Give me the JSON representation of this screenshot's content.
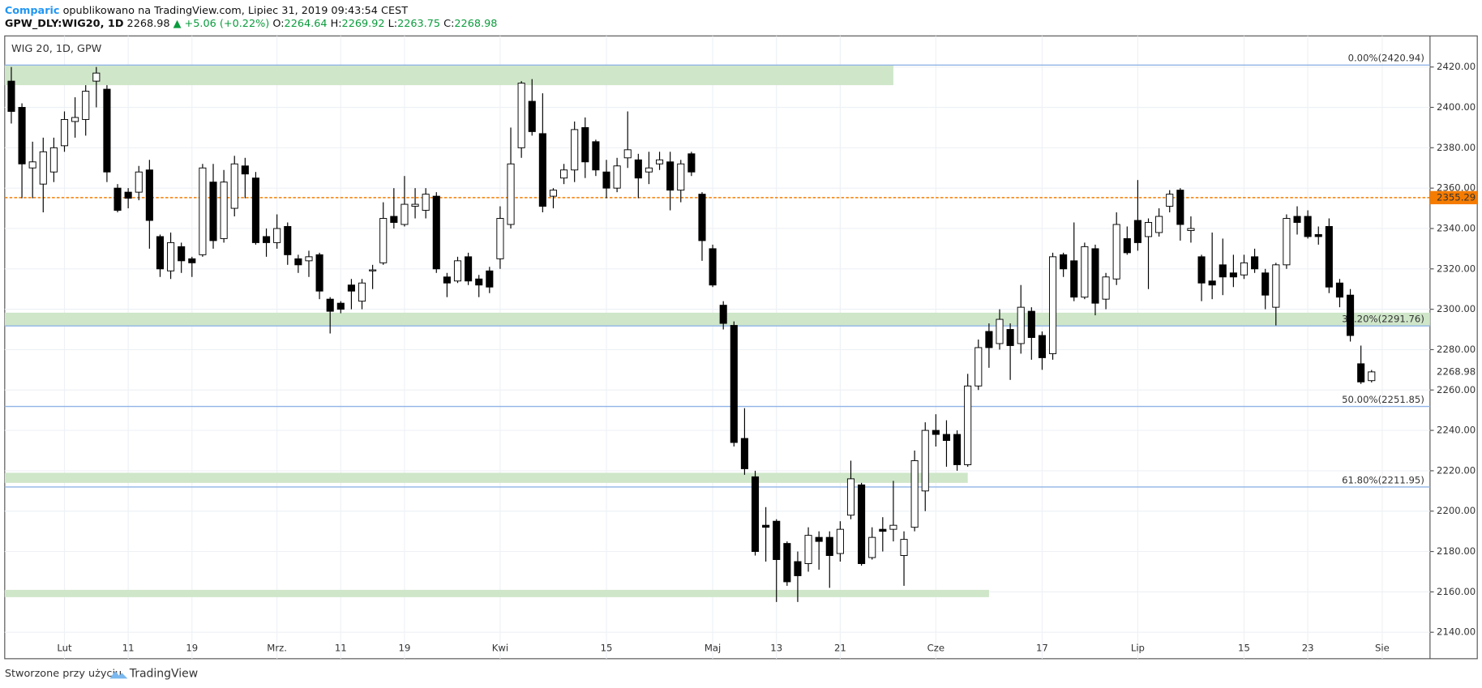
{
  "header": {
    "author": "Comparic",
    "published": "opublikowano na TradingView.com, Lipiec 31, 2019 09:43:54 CEST",
    "symbol": "GPW_DLY:WIG20, 1D",
    "last": "2268.98",
    "change": "▲ +5.06 (+0.22%)",
    "o_label": "O:",
    "o": "2264.64",
    "h_label": "H:",
    "h": "2269.92",
    "l_label": "L:",
    "l": "2263.75",
    "c_label": "C:",
    "c": "2268.98"
  },
  "footer": {
    "text": "Stworzone przy użyciu",
    "brand": "TradingView"
  },
  "chart_data": {
    "type": "candlestick",
    "title": "WIG 20, 1D, GPW",
    "up_color": "#ffffff",
    "down_color": "#000000",
    "grid": true,
    "open": [
      2413,
      2400,
      2370,
      2362,
      2368,
      2381,
      2393,
      2394,
      2413,
      2409,
      2360,
      2358,
      2358,
      2369,
      2336,
      2319,
      2331,
      2325,
      2327,
      2363,
      2335,
      2350,
      2371,
      2365,
      2336,
      2333,
      2341,
      2325,
      2324,
      2327,
      2305,
      2303,
      2312,
      2304,
      2319,
      2323,
      2346,
      2342,
      2351,
      2349,
      2356,
      2316,
      2314,
      2326,
      2315,
      2319,
      2325,
      2342,
      2380,
      2403,
      2387,
      2356,
      2365,
      2369,
      2390,
      2383,
      2368,
      2360,
      2375,
      2374,
      2368,
      2372,
      2373,
      2359,
      2377,
      2357,
      2330,
      2302,
      2292,
      2236,
      2217,
      2193,
      2195,
      2184,
      2175,
      2174,
      2187,
      2187,
      2179,
      2198,
      2213,
      2177,
      2191,
      2191,
      2178,
      2192,
      2210,
      2240,
      2238,
      2238,
      2223,
      2262,
      2289,
      2283,
      2290,
      2283,
      2299,
      2287,
      2278,
      2327,
      2324,
      2306,
      2330,
      2305,
      2315,
      2335,
      2344,
      2336,
      2338,
      2351,
      2359,
      2339,
      2326,
      2314,
      2322,
      2318,
      2317,
      2326,
      2318,
      2301,
      2322,
      2346,
      2346,
      2337,
      2341,
      2313,
      2307,
      2273,
      2264.64
    ],
    "high": [
      2420,
      2402,
      2383,
      2385,
      2385,
      2398,
      2405,
      2411,
      2420,
      2411,
      2362,
      2360,
      2371,
      2374,
      2337,
      2338,
      2333,
      2326,
      2372,
      2372,
      2369,
      2376,
      2375,
      2368,
      2340,
      2347,
      2343,
      2327,
      2329,
      2328,
      2306,
      2304,
      2315,
      2315,
      2322,
      2353,
      2360,
      2366,
      2360,
      2360,
      2358,
      2318,
      2326,
      2328,
      2317,
      2321,
      2351,
      2390,
      2413,
      2414,
      2407,
      2360,
      2372,
      2393,
      2395,
      2384,
      2374,
      2375,
      2398,
      2377,
      2378,
      2378,
      2378,
      2374,
      2378,
      2358,
      2332,
      2304,
      2294,
      2251,
      2220,
      2202,
      2196,
      2185,
      2180,
      2192,
      2190,
      2190,
      2195,
      2225,
      2214,
      2192,
      2197,
      2215,
      2190,
      2230,
      2244,
      2248,
      2245,
      2240,
      2268,
      2285,
      2293,
      2300,
      2293,
      2312,
      2301,
      2289,
      2328,
      2328,
      2343,
      2333,
      2332,
      2318,
      2348,
      2341,
      2364,
      2345,
      2350,
      2359,
      2360,
      2346,
      2327,
      2338,
      2335,
      2327,
      2327,
      2330,
      2320,
      2323,
      2347,
      2351,
      2349,
      2341,
      2345,
      2315,
      2310,
      2282,
      2269.92
    ],
    "low": [
      2392,
      2355,
      2355,
      2348,
      2363,
      2378,
      2385,
      2386,
      2400,
      2363,
      2348,
      2350,
      2354,
      2330,
      2316,
      2315,
      2318,
      2316,
      2326,
      2330,
      2333,
      2346,
      2355,
      2332,
      2326,
      2330,
      2322,
      2318,
      2316,
      2305,
      2288,
      2298,
      2300,
      2300,
      2310,
      2322,
      2340,
      2341,
      2345,
      2345,
      2318,
      2306,
      2313,
      2312,
      2306,
      2308,
      2320,
      2340,
      2375,
      2386,
      2348,
      2350,
      2362,
      2363,
      2365,
      2366,
      2355,
      2358,
      2370,
      2355,
      2362,
      2369,
      2349,
      2353,
      2366,
      2324,
      2311,
      2290,
      2232,
      2218,
      2178,
      2175,
      2155,
      2163,
      2155,
      2170,
      2171,
      2162,
      2175,
      2196,
      2173,
      2176,
      2180,
      2185,
      2163,
      2190,
      2200,
      2232,
      2222,
      2220,
      2222,
      2260,
      2271,
      2280,
      2265,
      2278,
      2275,
      2270,
      2275,
      2316,
      2304,
      2305,
      2297,
      2300,
      2312,
      2327,
      2329,
      2310,
      2336,
      2348,
      2334,
      2333,
      2304,
      2305,
      2307,
      2311,
      2315,
      2318,
      2300,
      2292,
      2320,
      2337,
      2335,
      2332,
      2308,
      2301,
      2284,
      2263,
      2263.75
    ],
    "close": [
      2398,
      2372,
      2373,
      2378,
      2380,
      2394,
      2395,
      2408,
      2417,
      2368,
      2349,
      2355,
      2368,
      2344,
      2320,
      2333,
      2324,
      2323,
      2370,
      2334,
      2363,
      2372,
      2367,
      2333,
      2333,
      2340,
      2327,
      2322,
      2326,
      2309,
      2299,
      2300,
      2309,
      2313,
      2319.5,
      2345,
      2343,
      2352,
      2352,
      2357,
      2320,
      2313,
      2324,
      2314,
      2312,
      2311,
      2345,
      2372,
      2412,
      2388,
      2351,
      2359,
      2369,
      2389,
      2373,
      2369,
      2360,
      2371,
      2379,
      2365,
      2370,
      2374,
      2359,
      2372,
      2368,
      2334,
      2312,
      2293,
      2234,
      2221,
      2180,
      2192,
      2176,
      2165,
      2168,
      2188,
      2185,
      2178,
      2191,
      2216,
      2174,
      2187,
      2190,
      2193,
      2186,
      2225,
      2240,
      2238,
      2235,
      2223,
      2262,
      2281,
      2281,
      2295,
      2282,
      2301,
      2286,
      2276,
      2326,
      2320,
      2306,
      2331,
      2303,
      2316,
      2342,
      2328,
      2333,
      2343,
      2346,
      2357,
      2342,
      2340,
      2313,
      2312,
      2316,
      2316,
      2323,
      2320,
      2307,
      2322,
      2345,
      2343,
      2336,
      2336,
      2311,
      2306,
      2287,
      2264,
      2268.98
    ],
    "xlim": [
      -0.62,
      133.5
    ],
    "xticks": [
      {
        "value": 5,
        "label": "Lut"
      },
      {
        "value": 11,
        "label": "11"
      },
      {
        "value": 17,
        "label": "19"
      },
      {
        "value": 25,
        "label": "Mrz."
      },
      {
        "value": 31,
        "label": "11"
      },
      {
        "value": 37,
        "label": "19"
      },
      {
        "value": 46,
        "label": "Kwi"
      },
      {
        "value": 56,
        "label": "15"
      },
      {
        "value": 66,
        "label": "Maj"
      },
      {
        "value": 72,
        "label": "13"
      },
      {
        "value": 78,
        "label": "21"
      },
      {
        "value": 87,
        "label": "Cze"
      },
      {
        "value": 97,
        "label": "17"
      },
      {
        "value": 106,
        "label": "Lip"
      },
      {
        "value": 116,
        "label": "15"
      },
      {
        "value": 122,
        "label": "23"
      },
      {
        "value": 129,
        "label": "Sie"
      }
    ],
    "ylim": [
      2126.9,
      2435.4
    ],
    "yticks": [
      {
        "value": 2140,
        "label": "2140.00"
      },
      {
        "value": 2160,
        "label": "2160.00"
      },
      {
        "value": 2180,
        "label": "2180.00"
      },
      {
        "value": 2200,
        "label": "2200.00"
      },
      {
        "value": 2220,
        "label": "2220.00"
      },
      {
        "value": 2240,
        "label": "2240.00"
      },
      {
        "value": 2260,
        "label": "2260.00"
      },
      {
        "value": 2280,
        "label": "2280.00"
      },
      {
        "value": 2300,
        "label": "2300.00"
      },
      {
        "value": 2320,
        "label": "2320.00"
      },
      {
        "value": 2340,
        "label": "2340.00"
      },
      {
        "value": 2360,
        "label": "2360.00"
      },
      {
        "value": 2380,
        "label": "2380.00"
      },
      {
        "value": 2400,
        "label": "2400.00"
      },
      {
        "value": 2420,
        "label": "2420.00"
      }
    ],
    "fib_levels": [
      {
        "value": 2420.94,
        "label": "0.00%(2420.94)"
      },
      {
        "value": 2291.76,
        "label": "38.20%(2291.76)"
      },
      {
        "value": 2251.85,
        "label": "50.00%(2251.85)"
      },
      {
        "value": 2211.95,
        "label": "61.80%(2211.95)"
      }
    ],
    "fib_color": "#90b4e6",
    "price_line": {
      "value": 2355.29,
      "color": "#f57c00"
    },
    "zones": [
      {
        "top": 2421,
        "bottom": 2411,
        "x_end": 83
      },
      {
        "top": 2298.3,
        "bottom": 2292
      },
      {
        "top": 2219,
        "bottom": 2214,
        "x_end": 90
      },
      {
        "top": 2161,
        "bottom": 2157.4,
        "x_end": 92
      }
    ],
    "zone_color": "#cfe6c9"
  }
}
